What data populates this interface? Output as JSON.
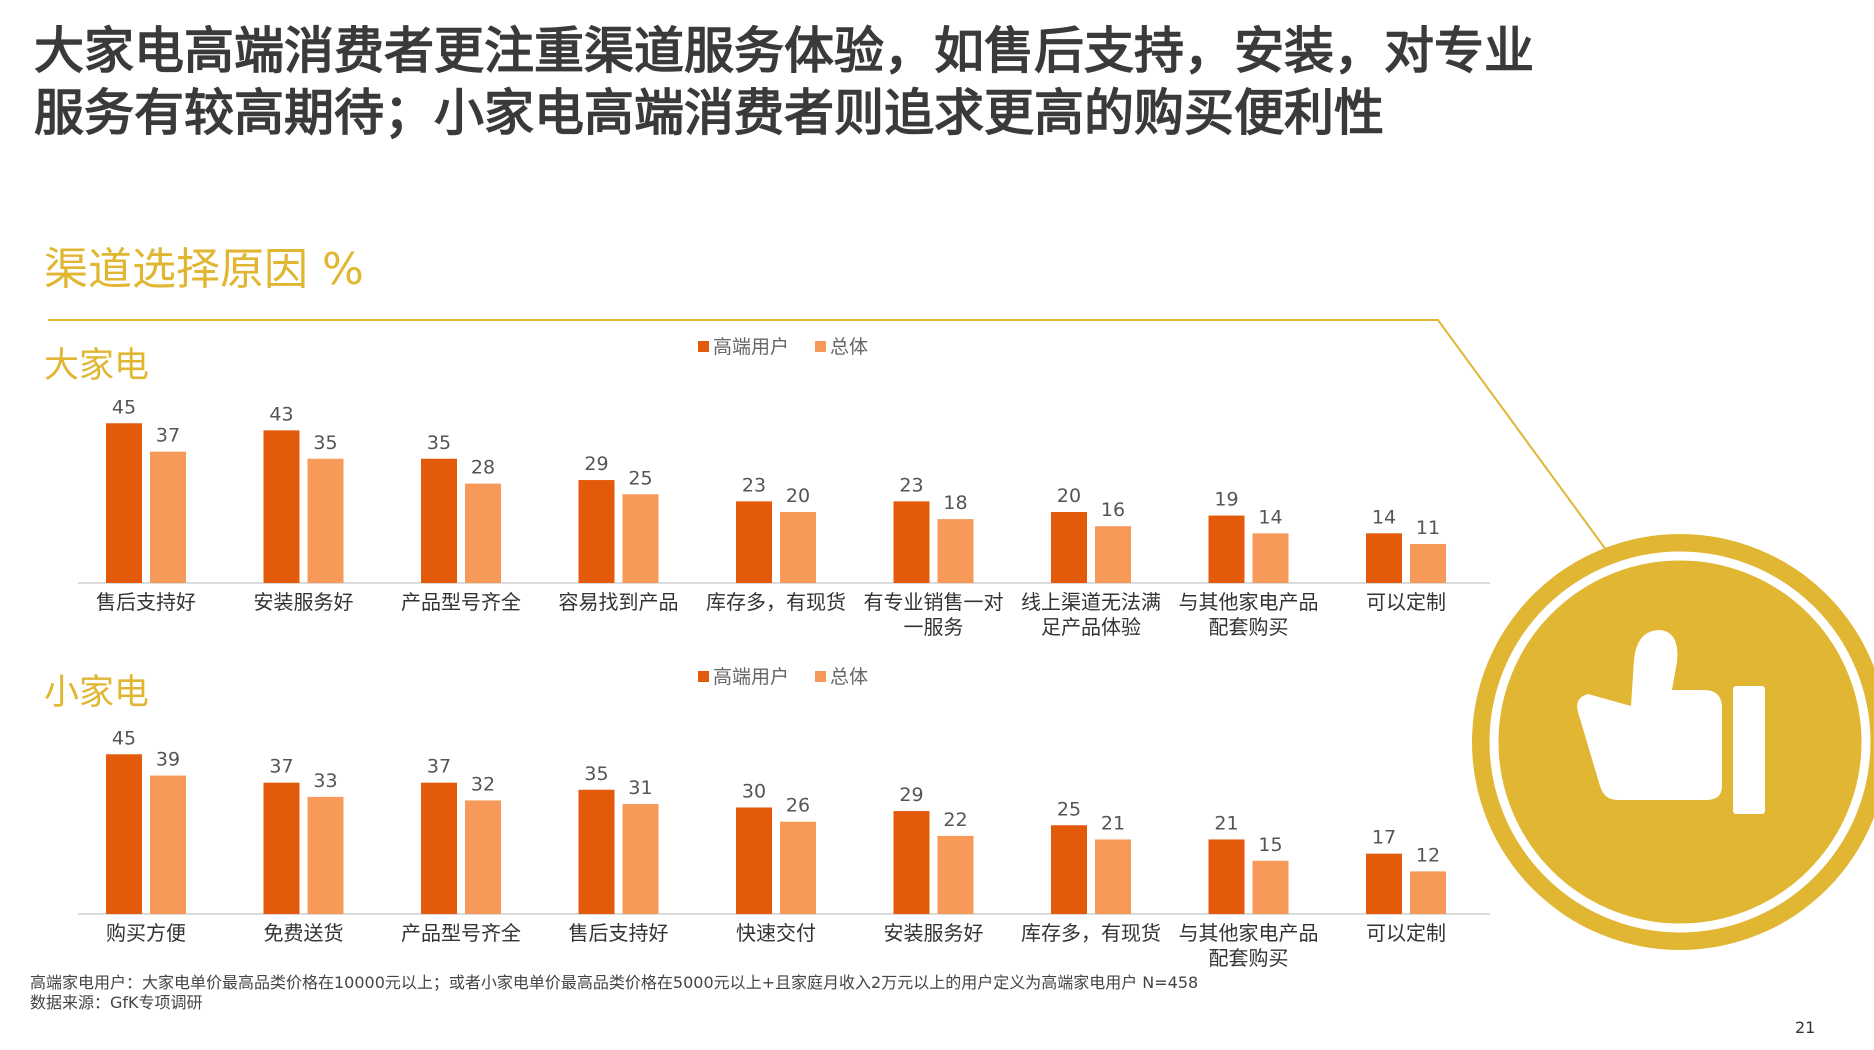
{
  "title": "大家电高端消费者更注重渠道服务体验，如售后支持，安装，对专业服务有较高期待；小家电高端消费者则追求更高的购买便利性",
  "section_title": "渠道选择原因 %",
  "colors": {
    "high_end": "#E35A0A",
    "overall": "#F79A59",
    "accent_gold": "#E0B632"
  },
  "icon": "thumbs-up-icon",
  "chart_data": [
    {
      "type": "bar",
      "title": "大家电",
      "categories": [
        "售后支持好",
        "安装服务好",
        "产品型号齐全",
        "容易找到产品",
        "库存多，有现货",
        "有专业销售一对一服务",
        "线上渠道无法满足产品体验",
        "与其他家电产品配套购买",
        "可以定制"
      ],
      "series": [
        {
          "name": "高端用户",
          "values": [
            45,
            43,
            35,
            29,
            23,
            23,
            20,
            19,
            14
          ]
        },
        {
          "name": "总体",
          "values": [
            37,
            35,
            28,
            25,
            20,
            18,
            16,
            14,
            11
          ]
        }
      ],
      "legend": "top-center",
      "ylim": [
        0,
        50
      ]
    },
    {
      "type": "bar",
      "title": "小家电",
      "categories": [
        "购买方便",
        "免费送货",
        "产品型号齐全",
        "售后支持好",
        "快速交付",
        "安装服务好",
        "库存多，有现货",
        "与其他家电产品配套购买",
        "可以定制"
      ],
      "series": [
        {
          "name": "高端用户",
          "values": [
            45,
            37,
            37,
            35,
            30,
            29,
            25,
            21,
            17
          ]
        },
        {
          "name": "总体",
          "values": [
            39,
            33,
            32,
            31,
            26,
            22,
            21,
            15,
            12
          ]
        }
      ],
      "legend": "top-center",
      "ylim": [
        0,
        50
      ]
    }
  ],
  "footnotes": [
    "高端家电用户：大家电单价最高品类价格在10000元以上；或者小家电单价最高品类价格在5000元以上+且家庭月收入2万元以上的用户定义为高端家电用户 N=458",
    "数据来源：GfK专项调研"
  ],
  "page_number": "21"
}
